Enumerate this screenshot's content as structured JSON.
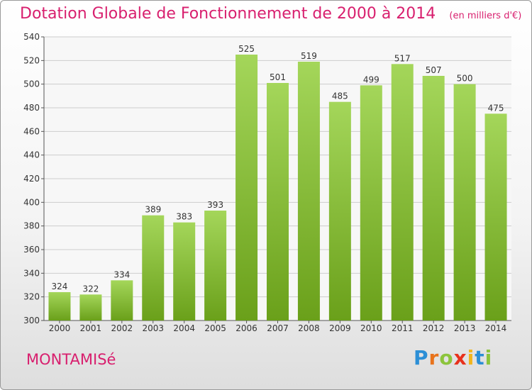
{
  "header": {
    "title": "Dotation Globale de Fonctionnement de 2000 à 2014",
    "unit": "(en milliers d'€)"
  },
  "footer": {
    "commune": "MONTAMISé",
    "logo": {
      "letters": [
        "P",
        "r",
        "o",
        "x",
        "i",
        "t",
        "i"
      ],
      "colors": [
        "#2c8fd6",
        "#e8731c",
        "#8cc43c",
        "#e8311c",
        "#f2b51c",
        "#2c8fd6",
        "#8cc43c"
      ]
    }
  },
  "colors": {
    "accent": "#d81f6e",
    "bar_light": "#a4d65a",
    "bar_dark": "#6aa01a",
    "axis": "#555555",
    "grid": "#cccccc"
  },
  "chart_data": {
    "type": "bar",
    "categories": [
      "2000",
      "2001",
      "2002",
      "2003",
      "2004",
      "2005",
      "2006",
      "2007",
      "2008",
      "2009",
      "2010",
      "2011",
      "2012",
      "2013",
      "2014"
    ],
    "values": [
      324,
      322,
      334,
      389,
      383,
      393,
      525,
      501,
      519,
      485,
      499,
      517,
      507,
      500,
      475
    ],
    "ylim": [
      300,
      540
    ],
    "yticks": [
      300,
      320,
      340,
      360,
      380,
      400,
      420,
      440,
      460,
      480,
      500,
      520,
      540
    ],
    "grid": true,
    "data_labels": true
  }
}
